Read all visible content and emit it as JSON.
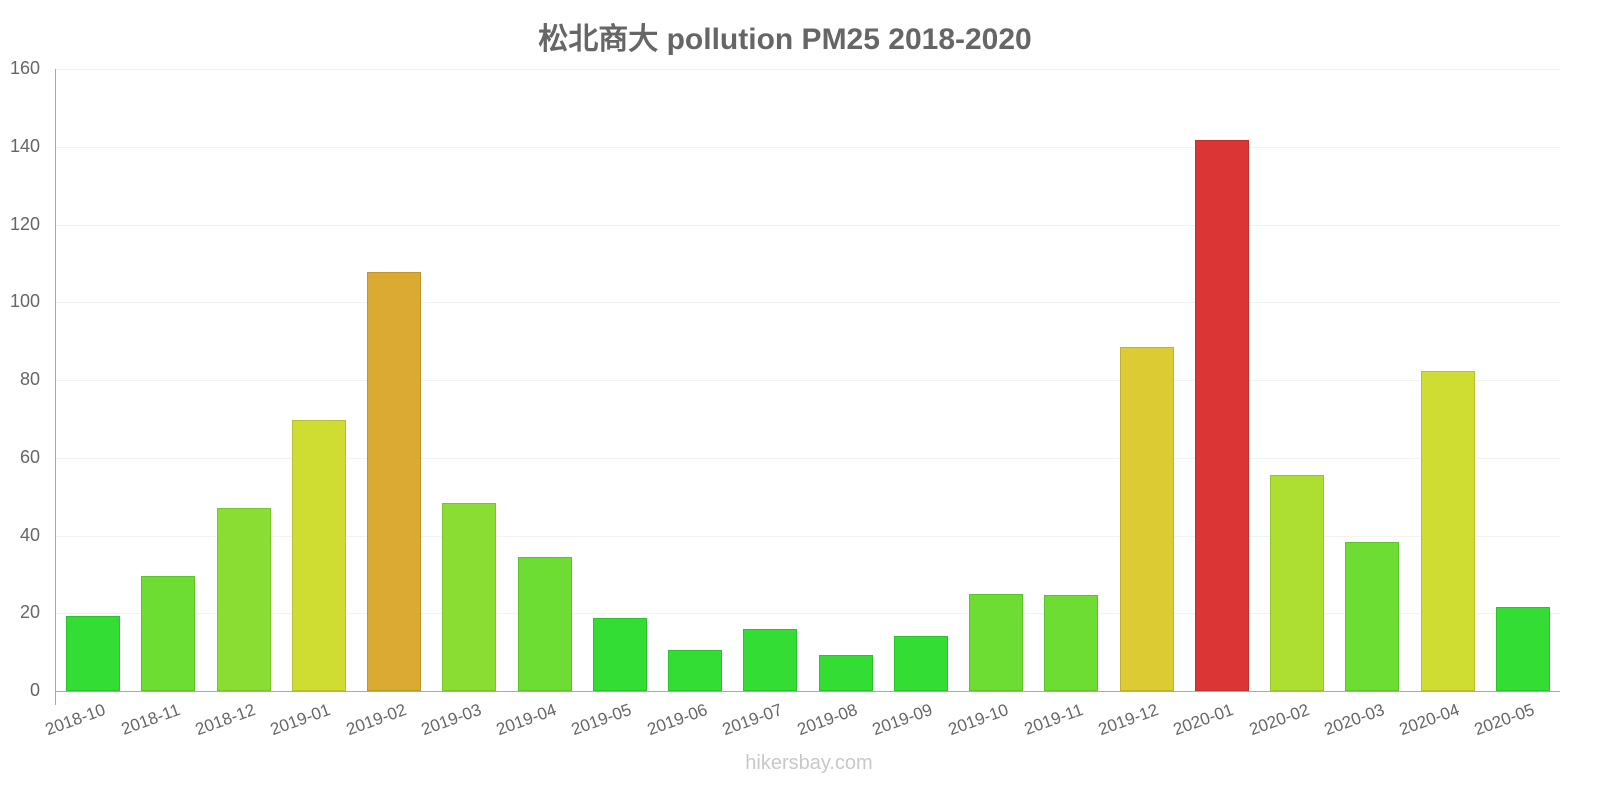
{
  "chart": {
    "title": "松北商大 pollution PM25 2018-2020",
    "watermark": "hikersbay.com"
  },
  "y_ticks": [
    "0",
    "20",
    "40",
    "60",
    "80",
    "100",
    "120",
    "140",
    "160"
  ],
  "chart_data": {
    "type": "bar",
    "title": "松北商大 pollution PM25 2018-2020",
    "xlabel": "",
    "ylabel": "",
    "ylim": [
      0,
      160
    ],
    "grid": true,
    "legend": "none",
    "categories": [
      "2018-10",
      "2018-11",
      "2018-12",
      "2019-01",
      "2019-02",
      "2019-03",
      "2019-04",
      "2019-05",
      "2019-06",
      "2019-07",
      "2019-08",
      "2019-09",
      "2019-10",
      "2019-11",
      "2019-12",
      "2020-01",
      "2020-02",
      "2020-03",
      "2020-04",
      "2020-05"
    ],
    "values": [
      19.3,
      29.6,
      47.1,
      69.7,
      107.8,
      48.4,
      34.5,
      18.8,
      10.5,
      15.9,
      9.3,
      14.1,
      25.0,
      24.7,
      88.5,
      141.7,
      55.6,
      38.3,
      82.3,
      21.6
    ],
    "colors": [
      "#33dd33",
      "#6ddd33",
      "#8ade33",
      "#cfdd33",
      "#dbaa33",
      "#8ade33",
      "#6ddd33",
      "#33dd33",
      "#33dd33",
      "#33dd33",
      "#33dd33",
      "#33dd33",
      "#6ddd33",
      "#6ddd33",
      "#dccb33",
      "#dc3535",
      "#addf33",
      "#6ddd33",
      "#cfdd33",
      "#33dd33"
    ]
  }
}
